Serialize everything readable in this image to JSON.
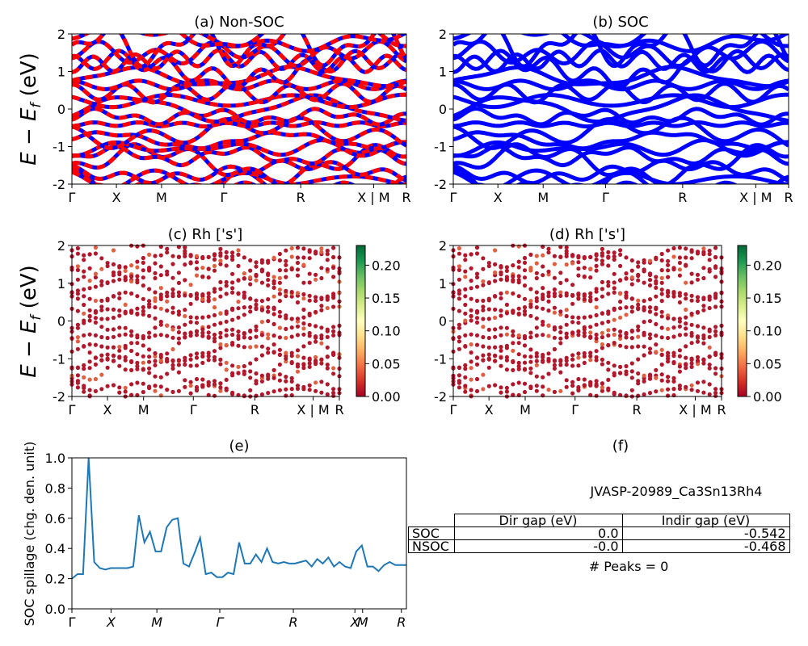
{
  "kpath_ticks": {
    "band": [
      "Γ",
      "X",
      "M",
      "Γ",
      "R",
      "X | M",
      "R"
    ],
    "spillage": [
      "Γ",
      "X",
      "M",
      "Γ",
      "R",
      "X",
      "M",
      "R"
    ]
  },
  "ylabel_band": "E − E",
  "ylabel_band_sub": "f",
  "ylabel_band_unit": " (eV)",
  "colors": {
    "nonsoc_a": "#ff0000",
    "nonsoc_b": "#0000ff",
    "soc": "#0000ff",
    "spillage_line": "#1f77b4"
  },
  "chart_data": [
    {
      "id": "a",
      "type": "line",
      "title": "(a) Non-SOC",
      "ylim": [
        -2,
        2
      ],
      "yticks": [
        -2,
        -1,
        0,
        1,
        2
      ],
      "xticks": [
        "Γ",
        "X",
        "M",
        "Γ",
        "R",
        "X | M",
        "R"
      ],
      "series_colors": [
        "red",
        "blue"
      ]
    },
    {
      "id": "b",
      "type": "line",
      "title": "(b) SOC",
      "ylim": [
        -2,
        2
      ],
      "yticks": [
        -2,
        -1,
        0,
        1,
        2
      ],
      "xticks": [
        "Γ",
        "X",
        "M",
        "Γ",
        "R",
        "X | M",
        "R"
      ],
      "series_colors": [
        "blue"
      ]
    },
    {
      "id": "c",
      "type": "scatter",
      "title": "(c)  Rh ['s']",
      "ylim": [
        -2,
        2
      ],
      "yticks": [
        -2,
        -1,
        0,
        1,
        2
      ],
      "xticks": [
        "Γ",
        "X",
        "M",
        "Γ",
        "R",
        "X | M",
        "R"
      ],
      "colorbar": {
        "min": 0.0,
        "max": 0.23,
        "ticks": [
          "0.00",
          "0.05",
          "0.10",
          "0.15",
          "0.20"
        ],
        "colormap": "RdYlGn"
      }
    },
    {
      "id": "d",
      "type": "scatter",
      "title": "(d) Rh ['s']",
      "ylim": [
        -2,
        2
      ],
      "yticks": [
        -2,
        -1,
        0,
        1,
        2
      ],
      "xticks": [
        "Γ",
        "X",
        "M",
        "Γ",
        "R",
        "X | M",
        "R"
      ],
      "colorbar": {
        "min": 0.0,
        "max": 0.23,
        "ticks": [
          "0.00",
          "0.05",
          "0.10",
          "0.15",
          "0.20"
        ],
        "colormap": "RdYlGn"
      }
    },
    {
      "id": "e",
      "type": "line",
      "title": "(e)",
      "ylabel": "SOC spillage (chg. den. unit)",
      "ylim": [
        0.0,
        1.0
      ],
      "yticks": [
        "0.0",
        "0.2",
        "0.4",
        "0.6",
        "0.8",
        "1.0"
      ],
      "xticks": [
        "Γ",
        "X",
        "M",
        "Γ",
        "R",
        "X",
        "M",
        "R"
      ],
      "x": [
        0,
        1,
        2,
        3,
        4,
        5,
        6,
        7,
        8,
        9,
        10,
        11,
        12,
        13,
        14,
        15,
        16,
        17,
        18,
        19,
        20,
        21,
        22,
        23,
        24,
        25,
        26,
        27,
        28,
        29,
        30,
        31,
        32,
        33,
        34,
        35,
        36,
        37,
        38,
        39,
        40,
        41,
        42,
        43,
        44,
        45,
        46,
        47,
        48,
        49,
        50,
        51,
        52,
        53,
        54,
        55,
        56,
        57,
        58,
        59,
        60
      ],
      "values": [
        0.2,
        0.23,
        0.23,
        1.0,
        0.31,
        0.27,
        0.26,
        0.27,
        0.27,
        0.27,
        0.27,
        0.28,
        0.62,
        0.44,
        0.51,
        0.38,
        0.38,
        0.54,
        0.59,
        0.6,
        0.3,
        0.28,
        0.37,
        0.47,
        0.23,
        0.24,
        0.21,
        0.21,
        0.24,
        0.23,
        0.44,
        0.3,
        0.3,
        0.36,
        0.31,
        0.4,
        0.31,
        0.3,
        0.31,
        0.3,
        0.3,
        0.31,
        0.32,
        0.28,
        0.33,
        0.3,
        0.34,
        0.28,
        0.31,
        0.28,
        0.27,
        0.38,
        0.42,
        0.28,
        0.28,
        0.25,
        0.29,
        0.31,
        0.29,
        0.29,
        0.29
      ]
    }
  ],
  "panel_f": {
    "title": "(f)",
    "material": "JVASP-20989_Ca3Sn13Rh4",
    "table": {
      "headers": [
        "Dir gap (eV)",
        "Indir gap (eV)"
      ],
      "rows": [
        {
          "label": "SOC",
          "dir": "0.0",
          "indir": "-0.542"
        },
        {
          "label": "NSOC",
          "dir": "-0.0",
          "indir": "-0.468"
        }
      ]
    },
    "peaks": "# Peaks = 0"
  }
}
